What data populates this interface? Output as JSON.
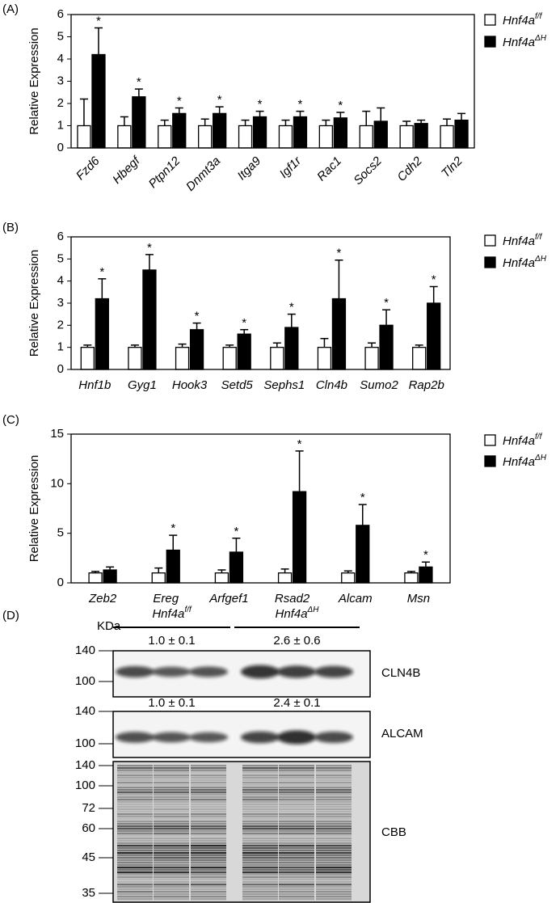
{
  "chart_data": [
    {
      "type": "bar",
      "panel": "(A)",
      "ylabel": "Relative Expression",
      "categories": [
        "Fzd6",
        "Hbegf",
        "Ptpn12",
        "Dnmt3a",
        "Itga9",
        "Igf1r",
        "Rac1",
        "Socs2",
        "Cdh2",
        "Tln2"
      ],
      "series": [
        {
          "name": "Hnf4a",
          "name_sup": "f/f",
          "color": "#ffffff",
          "values": [
            1,
            1,
            1,
            1,
            1,
            1,
            1,
            1,
            1,
            1
          ],
          "errors": [
            1.2,
            0.4,
            0.25,
            0.3,
            0.25,
            0.25,
            0.25,
            0.65,
            0.2,
            0.3
          ]
        },
        {
          "name": "Hnf4a",
          "name_sup": "ΔH",
          "color": "#000000",
          "values": [
            4.2,
            2.3,
            1.55,
            1.55,
            1.4,
            1.4,
            1.35,
            1.2,
            1.1,
            1.25
          ],
          "errors": [
            1.2,
            0.35,
            0.25,
            0.3,
            0.25,
            0.25,
            0.25,
            0.6,
            0.15,
            0.3
          ],
          "annotations": [
            "*",
            "*",
            "*",
            "*",
            "*",
            "*",
            "*",
            null,
            null,
            null
          ]
        }
      ],
      "ylim": [
        0,
        6
      ],
      "yticks": [
        0,
        1,
        2,
        3,
        4,
        5,
        6
      ]
    },
    {
      "type": "bar",
      "panel": "(B)",
      "ylabel": "Relative Expression",
      "categories": [
        "Hnf1b",
        "Gyg1",
        "Hook3",
        "Setd5",
        "Sephs1",
        "Cln4b",
        "Sumo2",
        "Rap2b"
      ],
      "series": [
        {
          "name": "Hnf4a",
          "name_sup": "f/f",
          "color": "#ffffff",
          "values": [
            1,
            1,
            1,
            1,
            1,
            1,
            1,
            1
          ],
          "errors": [
            0.1,
            0.1,
            0.15,
            0.1,
            0.2,
            0.4,
            0.2,
            0.1
          ]
        },
        {
          "name": "Hnf4a",
          "name_sup": "ΔH",
          "color": "#000000",
          "values": [
            3.2,
            4.5,
            1.8,
            1.6,
            1.9,
            3.2,
            2.0,
            3.0
          ],
          "errors": [
            0.9,
            0.7,
            0.3,
            0.2,
            0.6,
            1.75,
            0.7,
            0.75
          ],
          "annotations": [
            "*",
            "*",
            "*",
            "*",
            "*",
            "*",
            "*",
            "*"
          ]
        }
      ],
      "ylim": [
        0,
        6
      ],
      "yticks": [
        0,
        1,
        2,
        3,
        4,
        5,
        6
      ]
    },
    {
      "type": "bar",
      "panel": "(C)",
      "ylabel": "Relative Expression",
      "categories": [
        "Zeb2",
        "Ereg",
        "Arfgef1",
        "Rsad2",
        "Alcam",
        "Msn"
      ],
      "series": [
        {
          "name": "Hnf4a",
          "name_sup": "f/f",
          "color": "#ffffff",
          "values": [
            1,
            1,
            1,
            1,
            1,
            1
          ],
          "errors": [
            0.15,
            0.5,
            0.3,
            0.4,
            0.2,
            0.15
          ]
        },
        {
          "name": "Hnf4a",
          "name_sup": "ΔH",
          "color": "#000000",
          "values": [
            1.3,
            3.3,
            3.1,
            9.2,
            5.8,
            1.6
          ],
          "errors": [
            0.3,
            1.5,
            1.4,
            4.1,
            2.1,
            0.5
          ],
          "annotations": [
            null,
            "*",
            "*",
            "*",
            "*",
            "*"
          ]
        }
      ],
      "ylim": [
        0,
        15
      ],
      "yticks": [
        0,
        5,
        10,
        15
      ]
    }
  ],
  "blot": {
    "panel": "(D)",
    "unit": "KDa",
    "groups": [
      {
        "name": "Hnf4a",
        "name_sup": "f/f"
      },
      {
        "name": "Hnf4a",
        "name_sup": "ΔH"
      }
    ],
    "blots": [
      {
        "label": "CLN4B",
        "quant": [
          "1.0 ± 0.1",
          "2.6 ± 0.6"
        ],
        "markers": [
          "140",
          "100"
        ]
      },
      {
        "label": "ALCAM",
        "quant": [
          "1.0 ± 0.1",
          "2.4 ± 0.1"
        ],
        "markers": [
          "140",
          "100"
        ]
      },
      {
        "label": "CBB",
        "markers": [
          "140",
          "100",
          "72",
          "60",
          "45",
          "35"
        ]
      }
    ]
  }
}
